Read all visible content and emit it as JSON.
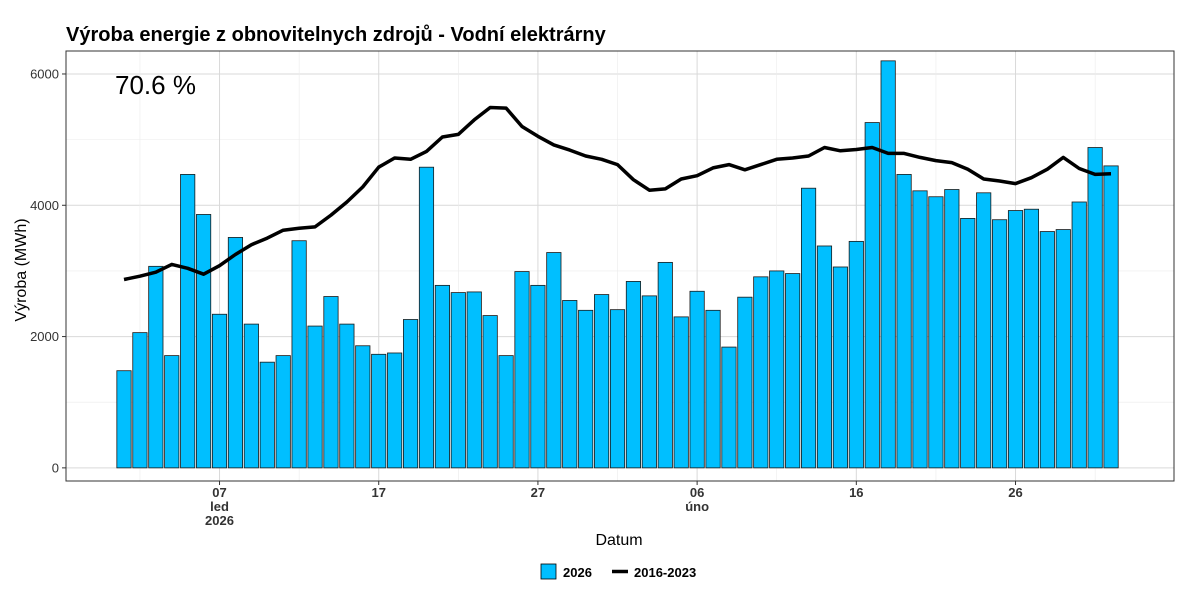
{
  "chart_data": {
    "type": "bar",
    "title": "Výroba energie z obnovitelnych zdrojů - Vodní elektrárny",
    "xlabel": "Datum",
    "ylabel": "Výroba (MWh)",
    "annotation": "70.6 %",
    "ylim": [
      -200,
      6350
    ],
    "y_ticks": [
      0,
      2000,
      4000,
      6000
    ],
    "x_ticks": [
      {
        "day": 7,
        "line1": "07",
        "line2": "led",
        "line3": "2026"
      },
      {
        "day": 17,
        "line1": "17",
        "line2": "",
        "line3": ""
      },
      {
        "day": 27,
        "line1": "27",
        "line2": "",
        "line3": ""
      },
      {
        "day": 37,
        "line1": "06",
        "line2": "úno",
        "line3": ""
      },
      {
        "day": 47,
        "line1": "16",
        "line2": "",
        "line3": ""
      },
      {
        "day": 57,
        "line1": "26",
        "line2": "",
        "line3": ""
      }
    ],
    "x_start_day": 1,
    "series": [
      {
        "name": "2026",
        "type": "bar",
        "color": "#00bfff",
        "values": [
          1480,
          2060,
          3070,
          1710,
          4470,
          3860,
          2340,
          3510,
          2190,
          1610,
          1710,
          3460,
          2160,
          2610,
          2190,
          1860,
          1730,
          1750,
          2260,
          4580,
          2780,
          2670,
          2680,
          2320,
          1710,
          2990,
          2780,
          3280,
          2550,
          2400,
          2640,
          2410,
          2840,
          2620,
          3130,
          2300,
          2690,
          2400,
          1840,
          2600,
          2910,
          3000,
          2960,
          4260,
          3380,
          3060,
          3450,
          5260,
          6200,
          4470,
          4220,
          4130,
          4240,
          3800,
          4190,
          3780,
          3920,
          3940,
          3600,
          3630,
          4050,
          4880,
          4600
        ]
      },
      {
        "name": "2016-2023",
        "type": "line",
        "color": "#000000",
        "values": [
          2870,
          2920,
          2980,
          3100,
          3040,
          2950,
          3080,
          3250,
          3400,
          3500,
          3620,
          3650,
          3670,
          3850,
          4050,
          4280,
          4580,
          4720,
          4700,
          4820,
          5040,
          5080,
          5300,
          5490,
          5480,
          5200,
          5050,
          4920,
          4840,
          4750,
          4700,
          4620,
          4390,
          4230,
          4250,
          4400,
          4450,
          4570,
          4620,
          4540,
          4620,
          4700,
          4720,
          4750,
          4880,
          4830,
          4850,
          4880,
          4790,
          4790,
          4730,
          4680,
          4650,
          4550,
          4400,
          4370,
          4330,
          4420,
          4550,
          4730,
          4560,
          4470,
          4480
        ]
      }
    ],
    "legend": {
      "position": "bottom",
      "items": [
        "2026",
        "2016-2023"
      ]
    }
  }
}
